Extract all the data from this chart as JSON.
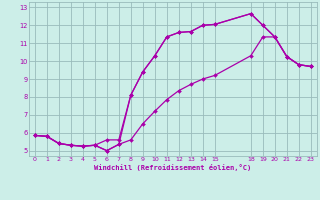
{
  "xlabel": "Windchill (Refroidissement éolien,°C)",
  "line_color": "#aa00aa",
  "background_color": "#cceee8",
  "grid_color": "#99bbbb",
  "xlim": [
    -0.5,
    23.5
  ],
  "ylim": [
    4.7,
    13.3
  ],
  "xticks": [
    0,
    1,
    2,
    3,
    4,
    5,
    6,
    7,
    8,
    9,
    10,
    11,
    12,
    13,
    14,
    15,
    18,
    19,
    20,
    21,
    22,
    23
  ],
  "yticks": [
    5,
    6,
    7,
    8,
    9,
    10,
    11,
    12,
    13
  ],
  "line1_x": [
    0,
    1,
    2,
    3,
    4,
    5,
    6,
    7,
    8,
    9,
    10,
    11,
    12,
    13,
    14,
    15,
    18,
    19,
    20,
    21,
    22,
    23
  ],
  "line1_y": [
    5.85,
    5.8,
    5.4,
    5.3,
    5.25,
    5.3,
    5.6,
    5.6,
    8.1,
    9.4,
    10.3,
    11.35,
    11.6,
    11.65,
    12.0,
    12.05,
    12.65,
    12.0,
    11.35,
    10.25,
    9.8,
    9.7
  ],
  "line2_x": [
    0,
    1,
    2,
    3,
    4,
    5,
    6,
    7,
    8,
    9,
    10,
    11,
    12,
    13,
    14,
    15,
    18,
    19,
    20,
    21,
    22,
    23
  ],
  "line2_y": [
    5.85,
    5.8,
    5.4,
    5.3,
    5.25,
    5.3,
    5.0,
    5.35,
    5.6,
    6.5,
    7.2,
    7.85,
    8.35,
    8.7,
    9.0,
    9.2,
    10.3,
    11.35,
    11.35,
    10.25,
    9.8,
    9.7
  ],
  "line3_x": [
    0,
    1,
    2,
    3,
    4,
    5,
    6,
    7,
    8,
    9,
    10,
    11,
    12,
    13,
    14,
    15,
    18,
    19,
    20,
    21,
    22,
    23
  ],
  "line3_y": [
    5.85,
    5.8,
    5.4,
    5.3,
    5.25,
    5.3,
    5.0,
    5.35,
    8.1,
    9.4,
    10.3,
    11.35,
    11.6,
    11.65,
    12.0,
    12.05,
    12.65,
    12.0,
    11.35,
    10.25,
    9.8,
    9.7
  ]
}
